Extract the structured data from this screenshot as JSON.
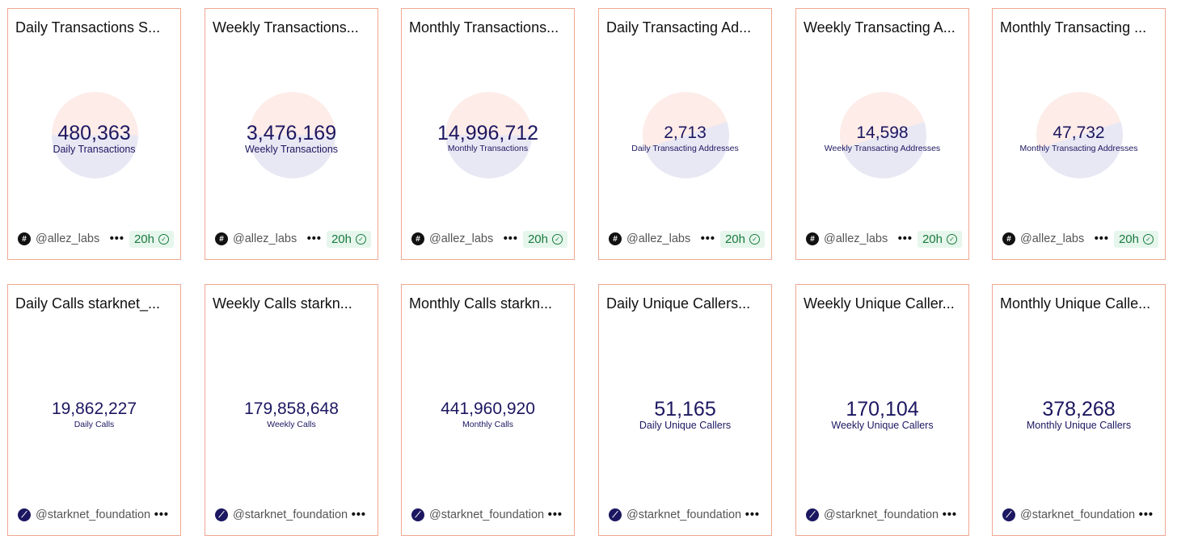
{
  "row1": [
    {
      "title": "Daily Transactions   S...",
      "value": "480,363",
      "label": "Daily Transactions",
      "owner": "@allez_labs",
      "age": "20h"
    },
    {
      "title": "Weekly Transactions...",
      "value": "3,476,169",
      "label": "Weekly Transactions",
      "owner": "@allez_labs",
      "age": "20h"
    },
    {
      "title": "Monthly Transactions...",
      "value": "14,996,712",
      "label": "Monthly Transactions",
      "owner": "@allez_labs",
      "age": "20h"
    },
    {
      "title": "Daily Transacting Ad...",
      "value": "2,713",
      "label": "Daily Transacting Addresses",
      "owner": "@allez_labs",
      "age": "20h"
    },
    {
      "title": "Weekly Transacting A...",
      "value": "14,598",
      "label": "Weekly Transacting Addresses",
      "owner": "@allez_labs",
      "age": "20h"
    },
    {
      "title": "Monthly Transacting ...",
      "value": "47,732",
      "label": "Monthly Transacting Addresses",
      "owner": "@allez_labs",
      "age": "20h"
    }
  ],
  "row2": [
    {
      "title": "Daily Calls   starknet_...",
      "value": "19,862,227",
      "label": "Daily Calls",
      "owner": "@starknet_foundation"
    },
    {
      "title": "Weekly Calls   starkn...",
      "value": "179,858,648",
      "label": "Weekly Calls",
      "owner": "@starknet_foundation"
    },
    {
      "title": "Monthly Calls   starkn...",
      "value": "441,960,920",
      "label": "Monthly Calls",
      "owner": "@starknet_foundation"
    },
    {
      "title": "Daily Unique Callers...",
      "value": "51,165",
      "label": "Daily Unique Callers",
      "owner": "@starknet_foundation"
    },
    {
      "title": "Weekly Unique Caller...",
      "value": "170,104",
      "label": "Weekly Unique Callers",
      "owner": "@starknet_foundation"
    },
    {
      "title": "Monthly Unique Calle...",
      "value": "378,268",
      "label": "Monthly Unique Callers",
      "owner": "@starknet_foundation"
    }
  ],
  "more_label": "•••"
}
